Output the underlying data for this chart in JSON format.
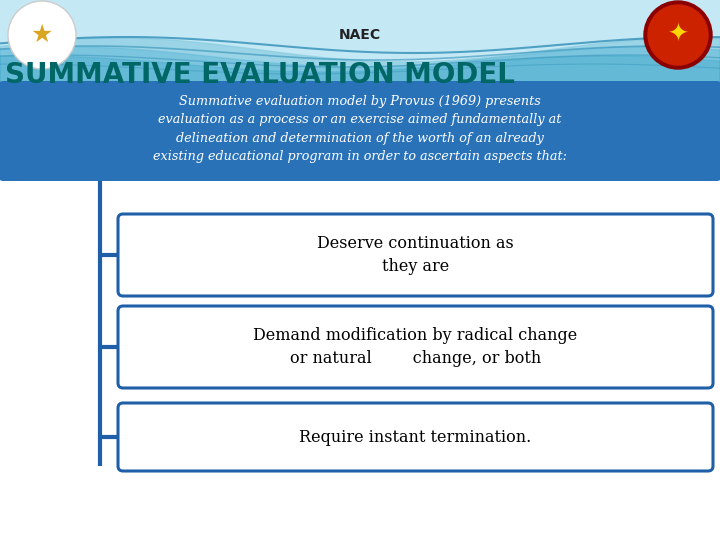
{
  "title_naec": "NAEC",
  "title_main": "SUMMATIVE EVALUATION MODEL",
  "title_color": "#006666",
  "header_text": "Summative evaluation model by Provus (1969) presents\nevaluation as a process or an exercise aimed fundamentally at\ndelineation and determination of the worth of an already\nexisting educational program in order to ascertain aspects that:",
  "header_bg": "#2A72B8",
  "header_text_color": "#ffffff",
  "box_border_color": "#1E5FA8",
  "box_bg": "#ffffff",
  "box_text_color": "#000000",
  "boxes": [
    "Deserve continuation as\nthey are",
    "Demand modification by radical change\nor natural        change, or both",
    "Require instant termination."
  ],
  "bg_top_color": "#c5e8f0",
  "bg_bottom_color": "#ffffff",
  "wave_colors": [
    "#a8dce8",
    "#80cce0",
    "#55b8d4"
  ],
  "naec_color": "#222222",
  "connector_color": "#1E5FA8"
}
